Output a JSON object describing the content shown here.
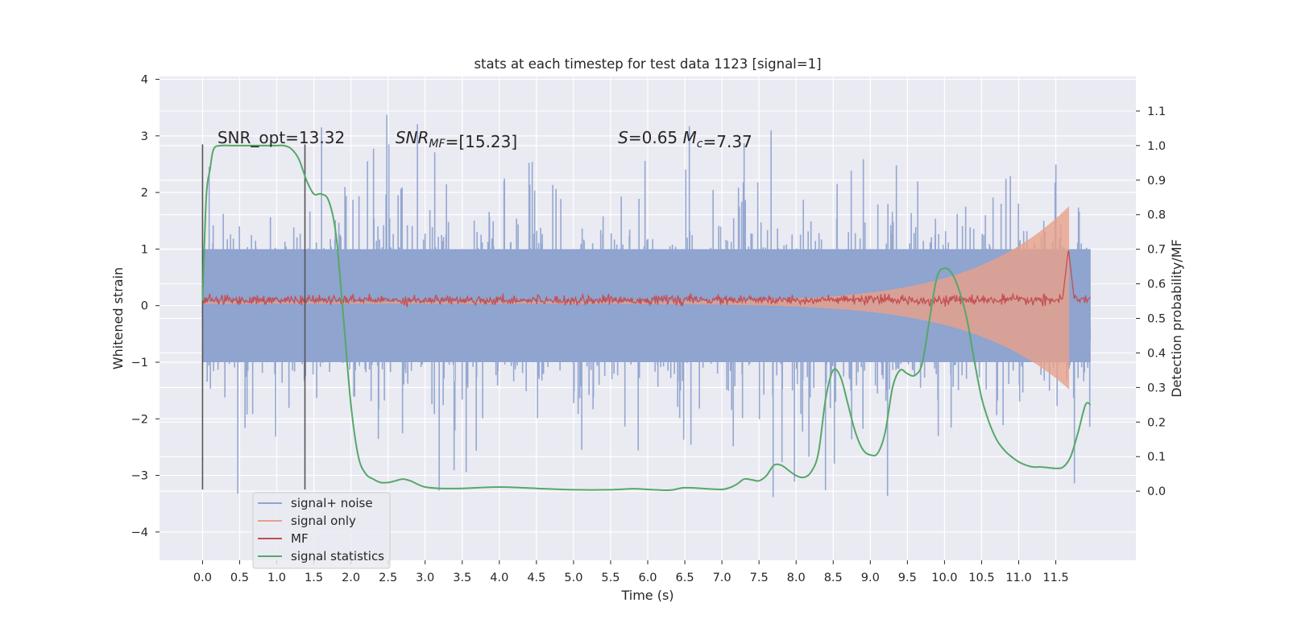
{
  "chart_data": {
    "type": "line",
    "title": "stats at each timestep for test data 1123 [signal=1]",
    "xlabel": "Time (s)",
    "ylabel_left": "Whitened strain",
    "ylabel_right": "Detection probability/MF",
    "xlim": [
      -0.58,
      12.58
    ],
    "ylim_left": [
      -4.5,
      4.05
    ],
    "ylim_right": [
      -0.2,
      1.2
    ],
    "x_ticks": [
      0.0,
      0.5,
      1.0,
      1.5,
      2.0,
      2.5,
      3.0,
      3.5,
      4.0,
      4.5,
      5.0,
      5.5,
      6.0,
      6.5,
      7.0,
      7.5,
      8.0,
      8.5,
      9.0,
      9.5,
      10.0,
      10.5,
      11.0,
      11.5
    ],
    "x_tick_labels": [
      "0.0",
      "0.5",
      "1.0",
      "1.5",
      "2.0",
      "2.5",
      "3.0",
      "3.5",
      "4.0",
      "4.5",
      "5.0",
      "5.5",
      "6.0",
      "6.5",
      "7.0",
      "7.5",
      "8.0",
      "8.5",
      "9.0",
      "9.5",
      "10.0",
      "10.5",
      "11.0",
      "11.5"
    ],
    "y_left_ticks": [
      -4,
      -3,
      -2,
      -1,
      0,
      1,
      2,
      3,
      4
    ],
    "y_left_tick_labels": [
      "−4",
      "−3",
      "−2",
      "−1",
      "0",
      "1",
      "2",
      "3",
      "4"
    ],
    "y_right_ticks": [
      0.0,
      0.1,
      0.2,
      0.3,
      0.4,
      0.5,
      0.6,
      0.7,
      0.8,
      0.9,
      1.0,
      1.1
    ],
    "y_right_tick_labels": [
      "0.0",
      "0.1",
      "0.2",
      "0.3",
      "0.4",
      "0.5",
      "0.6",
      "0.7",
      "0.8",
      "0.9",
      "1.0",
      "1.1"
    ],
    "grid": true,
    "legend_position": "lower-left",
    "annotations": [
      {
        "parts": [
          {
            "text": "SNR_opt=13.32",
            "italic": false
          }
        ],
        "x": 0.2,
        "y": 3.0
      },
      {
        "parts": [
          {
            "text": "SNR",
            "italic": true
          },
          {
            "text": "MF",
            "italic": true,
            "sub": true
          },
          {
            "text": "=[15.23]",
            "italic": false
          }
        ],
        "x": 2.6,
        "y": 3.0
      },
      {
        "parts": [
          {
            "text": "S",
            "italic": true
          },
          {
            "text": "=0.65   ",
            "italic": false
          },
          {
            "text": "M",
            "italic": true
          },
          {
            "text": "c",
            "italic": true,
            "sub": true
          },
          {
            "text": "=7.37",
            "italic": false
          }
        ],
        "x": 5.6,
        "y": 3.0
      }
    ],
    "vertical_lines": [
      {
        "x": 0.0,
        "y_from": -3.25,
        "y_to": 2.85,
        "color": "#555555"
      },
      {
        "x": 1.38,
        "y_from": -3.25,
        "y_to": 2.85,
        "color": "#555555"
      }
    ],
    "series": [
      {
        "name": "signal+ noise",
        "axis": "left",
        "color": "#8fa4cf",
        "style": "noise",
        "x_range": [
          0.0,
          11.97
        ],
        "std": 1.0,
        "peak_max": 3.7,
        "peak_min": -4.1
      },
      {
        "name": "signal only",
        "axis": "left",
        "color": "#e8a08a",
        "style": "chirp",
        "x_range": [
          0.0,
          11.68
        ],
        "envelope_start": 0.02,
        "envelope_end": 1.8
      },
      {
        "name": "MF",
        "axis": "left",
        "color": "#c44e52",
        "style": "mf",
        "x_range": [
          0.0,
          11.97
        ],
        "mean": 0.1,
        "noise_amp": 0.08,
        "peak_x": 11.67,
        "peak_y": 1.0
      },
      {
        "name": "signal statistics",
        "axis": "right",
        "color": "#55a868",
        "style": "line",
        "x": [
          0.0,
          0.05,
          0.1,
          0.15,
          0.25,
          0.4,
          0.6,
          0.8,
          1.0,
          1.1,
          1.2,
          1.3,
          1.4,
          1.5,
          1.6,
          1.7,
          1.8,
          1.9,
          2.0,
          2.1,
          2.2,
          2.3,
          2.4,
          2.5,
          2.6,
          2.7,
          2.8,
          2.9,
          3.0,
          3.2,
          3.5,
          4.0,
          4.5,
          5.0,
          5.5,
          5.8,
          6.0,
          6.3,
          6.5,
          6.8,
          7.0,
          7.1,
          7.2,
          7.3,
          7.4,
          7.5,
          7.6,
          7.7,
          7.8,
          7.9,
          8.0,
          8.1,
          8.2,
          8.3,
          8.4,
          8.5,
          8.6,
          8.7,
          8.8,
          8.9,
          9.0,
          9.1,
          9.2,
          9.3,
          9.4,
          9.5,
          9.6,
          9.7,
          9.8,
          9.9,
          10.0,
          10.1,
          10.2,
          10.3,
          10.4,
          10.5,
          10.6,
          10.7,
          10.8,
          10.9,
          11.0,
          11.1,
          11.2,
          11.3,
          11.4,
          11.5,
          11.6,
          11.7,
          11.8,
          11.9,
          11.97
        ],
        "y": [
          0.55,
          0.85,
          0.93,
          0.99,
          1.0,
          1.0,
          1.0,
          1.0,
          1.0,
          1.0,
          0.99,
          0.96,
          0.9,
          0.86,
          0.86,
          0.84,
          0.74,
          0.5,
          0.25,
          0.1,
          0.05,
          0.035,
          0.025,
          0.025,
          0.03,
          0.035,
          0.03,
          0.02,
          0.012,
          0.008,
          0.008,
          0.012,
          0.008,
          0.004,
          0.004,
          0.007,
          0.005,
          0.003,
          0.01,
          0.007,
          0.005,
          0.01,
          0.02,
          0.035,
          0.033,
          0.03,
          0.045,
          0.075,
          0.075,
          0.06,
          0.045,
          0.04,
          0.055,
          0.11,
          0.27,
          0.35,
          0.33,
          0.25,
          0.17,
          0.12,
          0.105,
          0.11,
          0.17,
          0.3,
          0.35,
          0.34,
          0.335,
          0.37,
          0.5,
          0.62,
          0.645,
          0.63,
          0.58,
          0.5,
          0.38,
          0.27,
          0.2,
          0.15,
          0.12,
          0.1,
          0.085,
          0.075,
          0.07,
          0.07,
          0.068,
          0.066,
          0.07,
          0.1,
          0.17,
          0.25,
          0.25
        ]
      }
    ]
  }
}
